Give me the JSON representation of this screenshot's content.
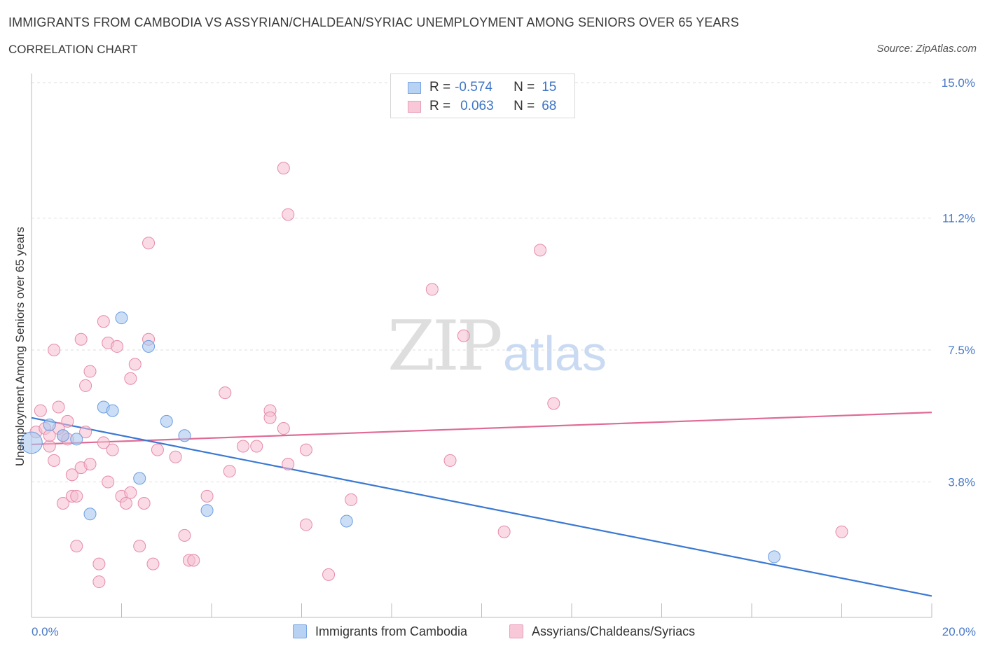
{
  "header": {
    "title": "IMMIGRANTS FROM CAMBODIA VS ASSYRIAN/CHALDEAN/SYRIAC UNEMPLOYMENT AMONG SENIORS OVER 65 YEARS",
    "subtitle": "CORRELATION CHART",
    "source": "Source: ZipAtlas.com"
  },
  "watermark": {
    "zip": "ZIP",
    "atlas": "atlas"
  },
  "legend": {
    "rows": [
      {
        "r_label": "R =",
        "r_value": "-0.574",
        "n_label": "N =",
        "n_value": "15"
      },
      {
        "r_label": "R =",
        "r_value": "0.063",
        "n_label": "N =",
        "n_value": "68"
      }
    ]
  },
  "bottom_legend": {
    "series_a": "Immigrants from Cambodia",
    "series_b": "Assyrians/Chaldeans/Syriacs"
  },
  "colors": {
    "blue_fill": "#a9c8f0",
    "blue_stroke": "#6a9de0",
    "blue_line": "#3a78d2",
    "pink_fill": "#f5bdd0",
    "pink_stroke": "#e58aa8",
    "pink_line": "#e06a96",
    "tick_text": "#4a7ac8",
    "grid": "#dddddd"
  },
  "chart_data": {
    "type": "scatter",
    "title": "IMMIGRANTS FROM CAMBODIA VS ASSYRIAN/CHALDEAN/SYRIAC UNEMPLOYMENT AMONG SENIORS OVER 65 YEARS",
    "xlabel": "",
    "ylabel": "Unemployment Among Seniors over 65 years",
    "xlim": [
      0,
      20
    ],
    "ylim": [
      0,
      15
    ],
    "x_tick_labels": [
      "0.0%",
      "20.0%"
    ],
    "y_ticks": [
      3.8,
      7.5,
      11.2,
      15.0
    ],
    "y_tick_labels": [
      "3.8%",
      "7.5%",
      "11.2%",
      "15.0%"
    ],
    "grid": "horizontal dashed",
    "legend_position": "top-center",
    "series": [
      {
        "name": "Immigrants from Cambodia",
        "color": "#a9c8f0",
        "points": [
          [
            0.0,
            4.9,
            1.8
          ],
          [
            0.4,
            5.4,
            1.0
          ],
          [
            0.7,
            5.1,
            1.0
          ],
          [
            1.0,
            5.0,
            1.0
          ],
          [
            1.6,
            5.9,
            1.0
          ],
          [
            1.8,
            5.8,
            1.0
          ],
          [
            2.0,
            8.4,
            1.0
          ],
          [
            2.6,
            7.6,
            1.0
          ],
          [
            3.0,
            5.5,
            1.0
          ],
          [
            3.4,
            5.1,
            1.0
          ],
          [
            1.3,
            2.9,
            1.0
          ],
          [
            2.4,
            3.9,
            1.0
          ],
          [
            3.9,
            3.0,
            1.0
          ],
          [
            7.0,
            2.7,
            1.0
          ],
          [
            16.5,
            1.7,
            1.0
          ]
        ],
        "trend": {
          "x": [
            0,
            20
          ],
          "y": [
            5.6,
            0.6
          ]
        }
      },
      {
        "name": "Assyrians/Chaldeans/Syriacs",
        "color": "#f5bdd0",
        "points": [
          [
            0.1,
            5.2
          ],
          [
            0.2,
            5.8
          ],
          [
            0.3,
            5.3
          ],
          [
            0.4,
            4.8
          ],
          [
            0.5,
            4.4
          ],
          [
            0.5,
            7.5
          ],
          [
            0.6,
            5.9
          ],
          [
            0.7,
            5.1
          ],
          [
            0.7,
            3.2
          ],
          [
            0.8,
            5.0
          ],
          [
            0.8,
            5.5
          ],
          [
            0.9,
            3.4
          ],
          [
            0.9,
            4.0
          ],
          [
            1.0,
            3.4
          ],
          [
            1.0,
            2.0
          ],
          [
            1.1,
            7.8
          ],
          [
            1.1,
            4.2
          ],
          [
            1.2,
            5.2
          ],
          [
            1.2,
            6.5
          ],
          [
            1.3,
            6.9
          ],
          [
            1.3,
            4.3
          ],
          [
            1.5,
            1.5
          ],
          [
            1.5,
            1.0
          ],
          [
            1.6,
            4.9
          ],
          [
            1.6,
            8.3
          ],
          [
            1.7,
            3.8
          ],
          [
            1.7,
            7.7
          ],
          [
            1.8,
            4.7
          ],
          [
            1.9,
            7.6
          ],
          [
            2.0,
            3.4
          ],
          [
            2.1,
            3.2
          ],
          [
            2.2,
            3.5
          ],
          [
            2.2,
            6.7
          ],
          [
            2.3,
            7.1
          ],
          [
            2.4,
            2.0
          ],
          [
            2.5,
            3.2
          ],
          [
            2.6,
            10.5
          ],
          [
            2.6,
            7.8
          ],
          [
            2.7,
            1.5
          ],
          [
            2.8,
            4.7
          ],
          [
            3.2,
            4.5
          ],
          [
            3.4,
            2.3
          ],
          [
            3.5,
            1.6
          ],
          [
            3.6,
            1.6
          ],
          [
            3.9,
            3.4
          ],
          [
            4.3,
            6.3
          ],
          [
            4.4,
            4.1
          ],
          [
            4.7,
            4.8
          ],
          [
            5.0,
            4.8
          ],
          [
            5.3,
            5.8
          ],
          [
            5.3,
            5.6
          ],
          [
            5.6,
            5.3
          ],
          [
            5.7,
            4.3
          ],
          [
            5.6,
            12.6
          ],
          [
            5.7,
            11.3
          ],
          [
            6.1,
            4.7
          ],
          [
            6.1,
            2.6
          ],
          [
            6.6,
            1.2
          ],
          [
            7.1,
            3.3
          ],
          [
            8.9,
            9.2
          ],
          [
            9.3,
            4.4
          ],
          [
            9.6,
            7.9
          ],
          [
            10.5,
            2.4
          ],
          [
            11.3,
            10.3
          ],
          [
            11.6,
            6.0
          ],
          [
            18.0,
            2.4
          ],
          [
            0.4,
            5.1
          ],
          [
            0.6,
            5.3
          ]
        ],
        "trend": {
          "x": [
            0,
            20
          ],
          "y": [
            4.85,
            5.75
          ]
        }
      }
    ]
  }
}
